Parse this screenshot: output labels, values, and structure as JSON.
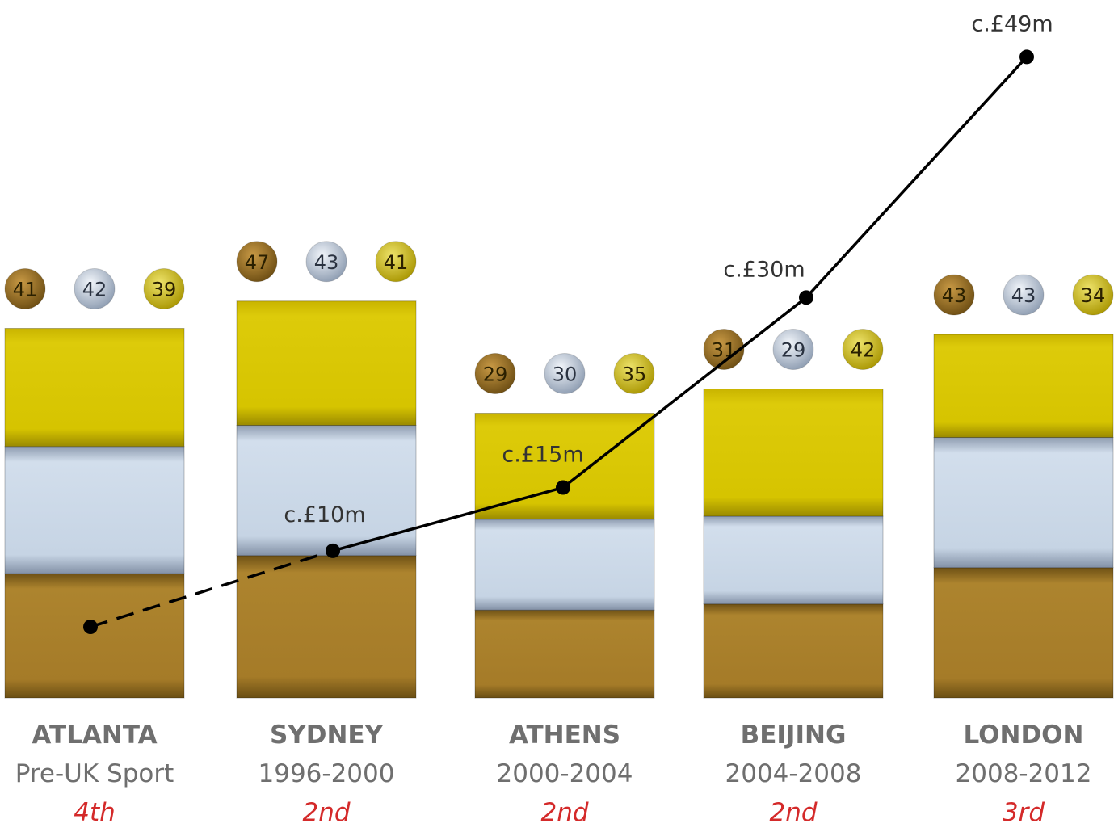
{
  "colors": {
    "bronze": "#a87e2a",
    "silver": "#c9d6e6",
    "gold": "#d6c400",
    "line": "#000000",
    "rank_text": "#d42a2a",
    "label_text": "#6f6f6f"
  },
  "chart_data": {
    "type": "bar",
    "stacked": true,
    "categories": [
      {
        "name": "ATLANTA",
        "period": "Pre-UK Sport",
        "rank": "4th"
      },
      {
        "name": "SYDNEY",
        "period": "1996-2000",
        "rank": "2nd"
      },
      {
        "name": "ATHENS",
        "period": "2000-2004",
        "rank": "2nd"
      },
      {
        "name": "BEIJING",
        "period": "2004-2008",
        "rank": "2nd"
      },
      {
        "name": "LONDON",
        "period": "2008-2012",
        "rank": "3rd"
      }
    ],
    "series": [
      {
        "key": "bronze",
        "values": [
          41,
          47,
          29,
          31,
          43
        ]
      },
      {
        "key": "silver",
        "values": [
          42,
          43,
          30,
          29,
          43
        ]
      },
      {
        "key": "gold",
        "values": [
          39,
          41,
          35,
          42,
          34
        ]
      }
    ],
    "funding_line": {
      "values": [
        4,
        10,
        15,
        30,
        49
      ],
      "labels": [
        "",
        "c.£10m",
        "c.£15m",
        "c.£30m",
        "c.£49m"
      ],
      "dashed_segment": [
        0,
        1
      ]
    }
  }
}
